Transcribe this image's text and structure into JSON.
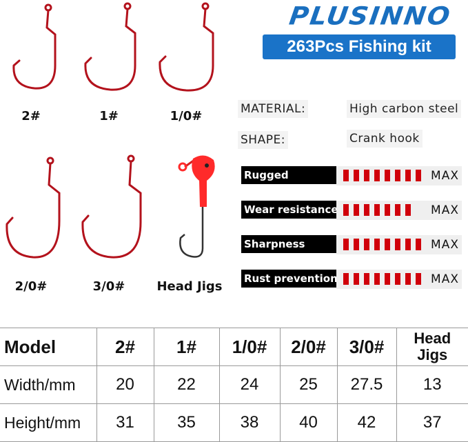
{
  "brand": {
    "logo": "PLUSINNO",
    "banner": "263Pcs Fishing kit",
    "color": "#1a73c8"
  },
  "hooks": [
    {
      "label": "2#"
    },
    {
      "label": "1#"
    },
    {
      "label": "1/0#"
    },
    {
      "label": "2/0#"
    },
    {
      "label": "3/0#"
    },
    {
      "label": "Head Jigs"
    }
  ],
  "specs": [
    {
      "label": "MATERIAL:",
      "value": "High carbon steel"
    },
    {
      "label": "SHAPE:",
      "value": "Crank hook"
    }
  ],
  "ratings": [
    {
      "label": "Rugged",
      "level": 8,
      "max": 8,
      "max_label": "MAX"
    },
    {
      "label": "Wear resistance",
      "level": 7,
      "max": 8,
      "max_label": "MAX"
    },
    {
      "label": "Sharpness",
      "level": 8,
      "max": 8,
      "max_label": "MAX"
    },
    {
      "label": "Rust prevention",
      "level": 8,
      "max": 8,
      "max_label": "MAX"
    }
  ],
  "colors": {
    "hook": "#b3121c",
    "rating": "#d0000b",
    "jig_head": "#ff2a2a"
  },
  "table": {
    "headers": [
      "Model",
      "2#",
      "1#",
      "1/0#",
      "2/0#",
      "3/0#",
      "Head Jigs"
    ],
    "rows": [
      [
        "Width/mm",
        "20",
        "22",
        "24",
        "25",
        "27.5",
        "13"
      ],
      [
        "Height/mm",
        "31",
        "35",
        "38",
        "40",
        "42",
        "37"
      ]
    ]
  }
}
